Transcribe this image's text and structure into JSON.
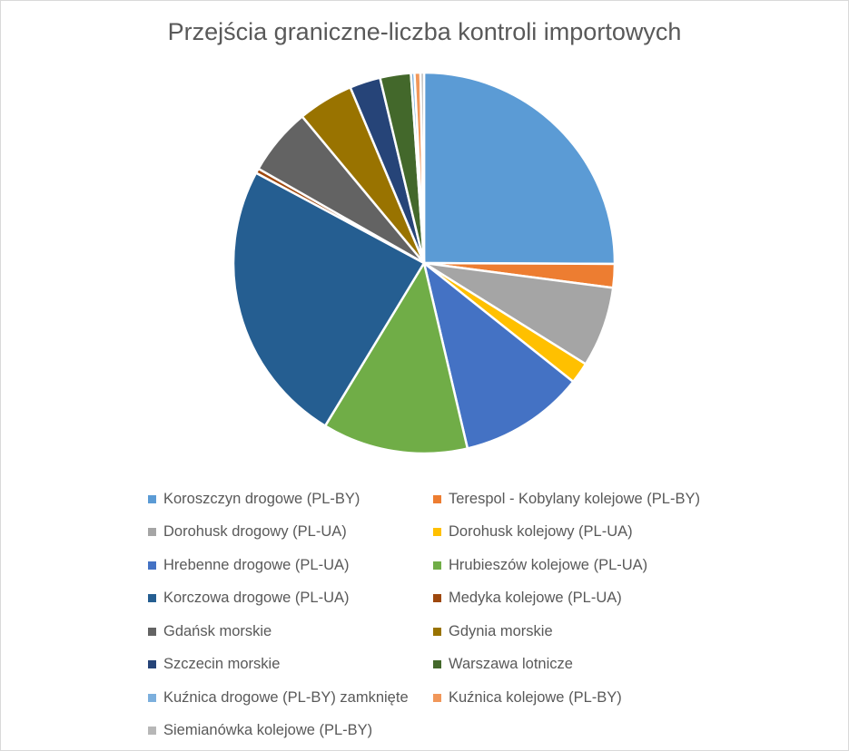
{
  "chart_data": {
    "type": "pie",
    "title": "Przejścia graniczne-liczba kontroli importowych",
    "legend_position": "bottom",
    "slices": [
      {
        "label": "Koroszczyn drogowe (PL-BY)",
        "value": 25.0,
        "color": "#5b9bd5"
      },
      {
        "label": "Terespol - Kobylany kolejowe (PL-BY)",
        "value": 2.0,
        "color": "#ed7d31"
      },
      {
        "label": "Dorohusk drogowy (PL-UA)",
        "value": 6.8,
        "color": "#a5a5a5"
      },
      {
        "label": "Dorohusk kolejowy (PL-UA)",
        "value": 1.8,
        "color": "#ffc000"
      },
      {
        "label": "Hrebenne drogowe (PL-UA)",
        "value": 10.6,
        "color": "#4472c4"
      },
      {
        "label": "Hrubieszów kolejowe (PL-UA)",
        "value": 12.3,
        "color": "#70ad47"
      },
      {
        "label": "Korczowa drogowe (PL-UA)",
        "value": 24.1,
        "color": "#255e91"
      },
      {
        "label": "Medyka kolejowe (PL-UA)",
        "value": 0.4,
        "color": "#9e480e"
      },
      {
        "label": "Gdańsk morskie",
        "value": 5.7,
        "color": "#636363"
      },
      {
        "label": "Gdynia morskie",
        "value": 4.7,
        "color": "#997300"
      },
      {
        "label": "Szczecin morskie",
        "value": 2.6,
        "color": "#264478"
      },
      {
        "label": "Warszawa lotnicze",
        "value": 2.6,
        "color": "#43682b"
      },
      {
        "label": "Kuźnica drogowe (PL-BY) zamknięte",
        "value": 0.3,
        "color": "#7cafdd"
      },
      {
        "label": "Kuźnica kolejowe (PL-BY)",
        "value": 0.5,
        "color": "#f1975a"
      },
      {
        "label": "Siemianówka kolejowe (PL-BY)",
        "value": 0.3,
        "color": "#b7b7b7"
      }
    ]
  }
}
